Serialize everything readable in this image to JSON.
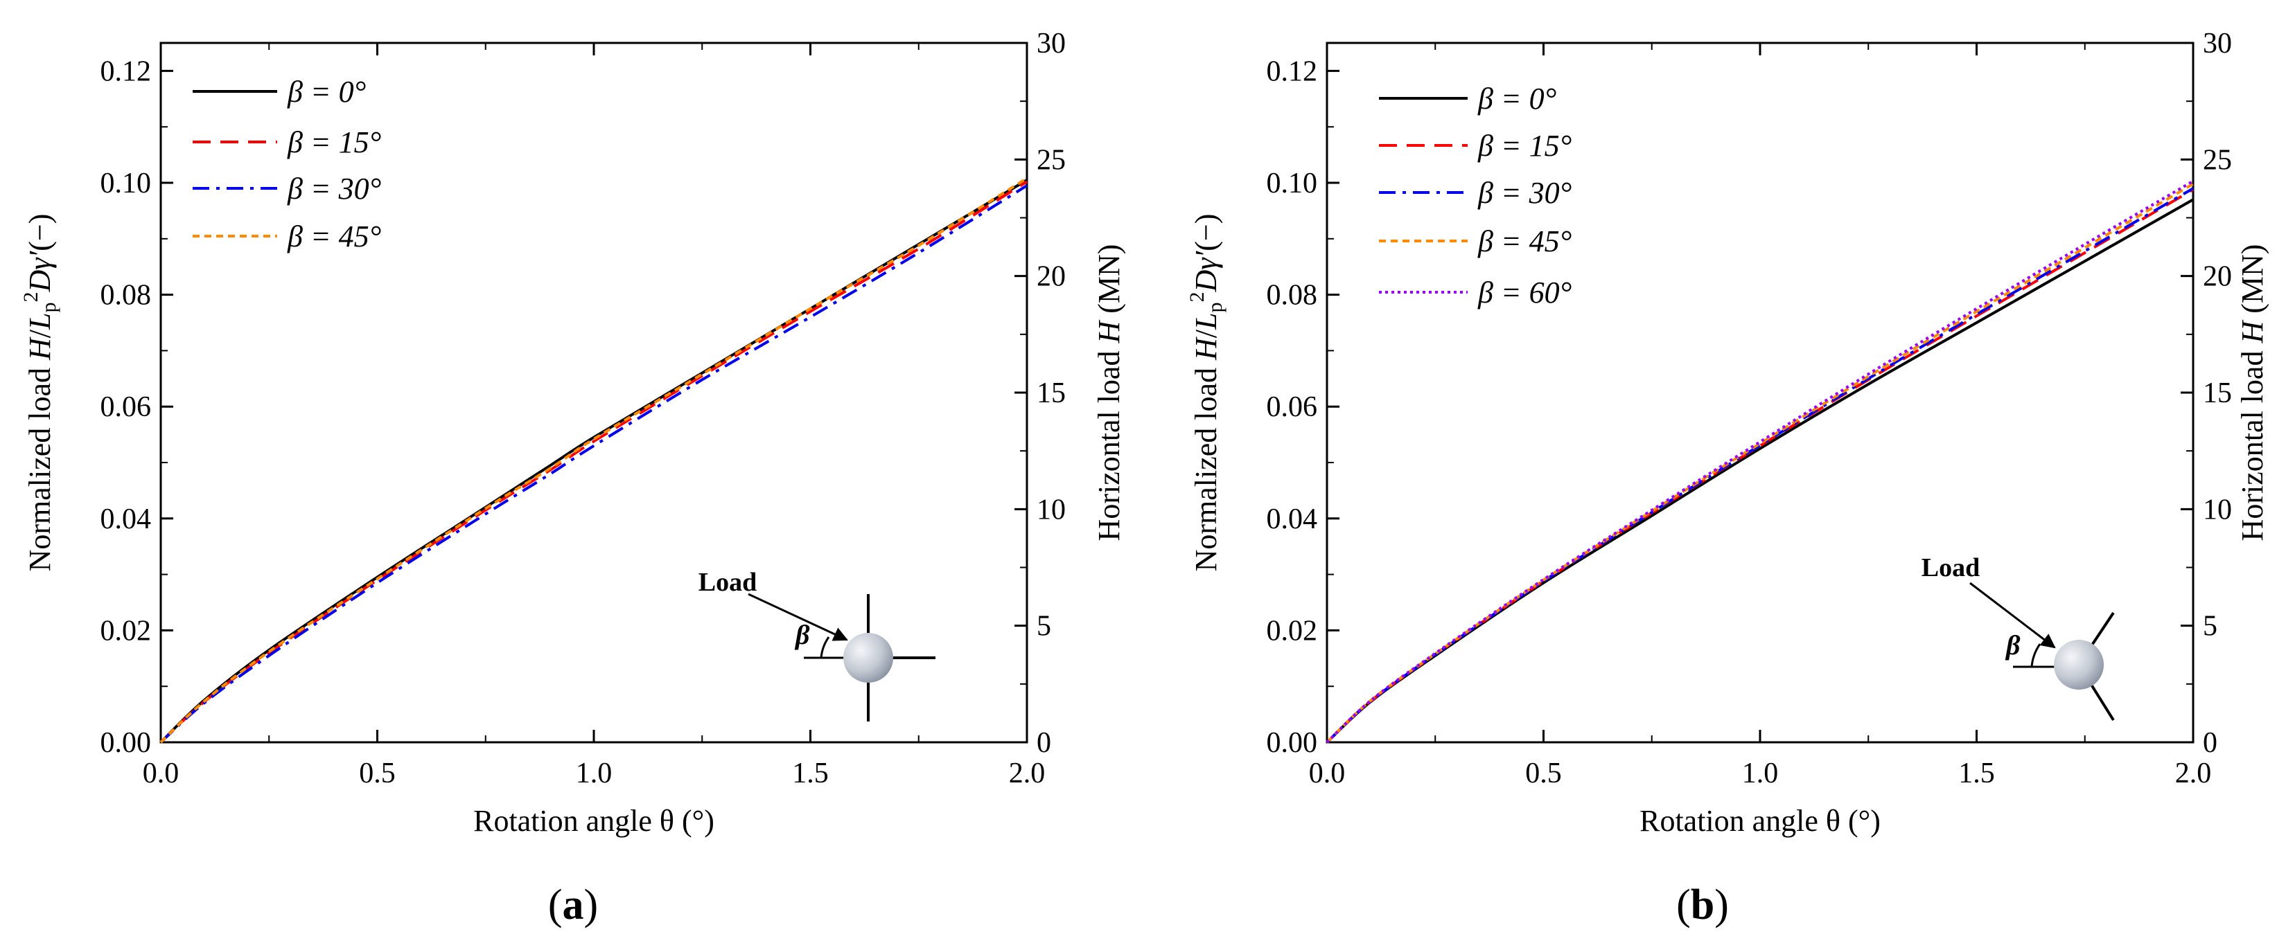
{
  "chart_data": [
    {
      "type": "line",
      "panel_label": "(a)",
      "xlabel": "Rotation angle θ (°)",
      "ylabel": "Normalized load H/Lp²Dγ′(−)",
      "ylabel_parts": {
        "a": "Normalized load ",
        "H": "H",
        "slash": "/",
        "L": "L",
        "p": "p",
        "sq": "2",
        "D": "D",
        "gamma": "γ′",
        "unit": "(−)"
      },
      "y2label": "Horizontal load H (MN)",
      "y2label_parts": {
        "a": "Horizontal load ",
        "H": "H",
        "unit": " (MN)"
      },
      "xlim": [
        0,
        2.0
      ],
      "ylim": [
        0,
        0.125
      ],
      "y2lim": [
        0,
        30
      ],
      "xticks": [
        "0.0",
        "0.5",
        "1.0",
        "1.5",
        "2.0"
      ],
      "yticks": [
        "0.00",
        "0.02",
        "0.04",
        "0.06",
        "0.08",
        "0.10",
        "0.12"
      ],
      "y2ticks": [
        "0",
        "5",
        "10",
        "15",
        "20",
        "25",
        "30"
      ],
      "legend_position": "top-left",
      "x": [
        0,
        0.1,
        0.25,
        0.5,
        0.75,
        0.9,
        1.0,
        1.25,
        1.5,
        1.75,
        2.0
      ],
      "series": [
        {
          "name": "β = 0°",
          "color": "#000000",
          "style": "solid",
          "values": [
            0,
            0.0075,
            0.0165,
            0.0295,
            0.042,
            0.0495,
            0.0545,
            0.066,
            0.0775,
            0.089,
            0.1005
          ]
        },
        {
          "name": "β = 15°",
          "color": "#ff0000",
          "style": "dash",
          "values": [
            0,
            0.0072,
            0.016,
            0.029,
            0.0415,
            0.0487,
            0.0538,
            0.0655,
            0.077,
            0.0882,
            0.1002
          ]
        },
        {
          "name": "β = 30°",
          "color": "#0000ee",
          "style": "dashdot",
          "values": [
            0,
            0.007,
            0.0155,
            0.0285,
            0.0408,
            0.048,
            0.053,
            0.0648,
            0.076,
            0.0875,
            0.0995
          ]
        },
        {
          "name": "β = 45°",
          "color": "#ff8c00",
          "style": "dot",
          "values": [
            0,
            0.0073,
            0.0162,
            0.0292,
            0.0418,
            0.049,
            0.0542,
            0.0658,
            0.0775,
            0.0888,
            0.1008
          ]
        }
      ],
      "inset": {
        "load_label": "Load",
        "beta_label": "β",
        "variant": "cross"
      }
    },
    {
      "type": "line",
      "panel_label": "(b)",
      "xlabel": "Rotation angle θ (°)",
      "ylabel": "Normalized load H/Lp²Dγ′(−)",
      "ylabel_parts": {
        "a": "Normalized load ",
        "H": "H",
        "slash": "/",
        "L": "L",
        "p": "p",
        "sq": "2",
        "D": "D",
        "gamma": "γ′",
        "unit": "(−)"
      },
      "y2label": "Horizontal load H (MN)",
      "y2label_parts": {
        "a": "Horizontal load ",
        "H": "H",
        "unit": " (MN)"
      },
      "xlim": [
        0,
        2.0
      ],
      "ylim": [
        0,
        0.125
      ],
      "y2lim": [
        0,
        30
      ],
      "xticks": [
        "0.0",
        "0.5",
        "1.0",
        "1.5",
        "2.0"
      ],
      "yticks": [
        "0.00",
        "0.02",
        "0.04",
        "0.06",
        "0.08",
        "0.10",
        "0.12"
      ],
      "y2ticks": [
        "0",
        "5",
        "10",
        "15",
        "20",
        "25",
        "30"
      ],
      "legend_position": "top-left",
      "x": [
        0,
        0.1,
        0.25,
        0.5,
        0.75,
        1.0,
        1.25,
        1.5,
        1.75,
        2.0
      ],
      "series": [
        {
          "name": "β = 0°",
          "color": "#000000",
          "style": "solid",
          "values": [
            0,
            0.0072,
            0.0155,
            0.0285,
            0.0405,
            0.0525,
            0.064,
            0.075,
            0.086,
            0.097
          ]
        },
        {
          "name": "β = 15°",
          "color": "#ff0000",
          "style": "dash",
          "values": [
            0,
            0.0073,
            0.0157,
            0.0288,
            0.041,
            0.053,
            0.0648,
            0.0762,
            0.0875,
            0.0988
          ]
        },
        {
          "name": "β = 30°",
          "color": "#0000ee",
          "style": "dashdot",
          "values": [
            0,
            0.0073,
            0.0157,
            0.0288,
            0.0411,
            0.0531,
            0.065,
            0.0765,
            0.0878,
            0.099
          ]
        },
        {
          "name": "β = 45°",
          "color": "#ff8c00",
          "style": "dot",
          "values": [
            0,
            0.0074,
            0.0158,
            0.029,
            0.0413,
            0.0534,
            0.0654,
            0.077,
            0.0884,
            0.0998
          ]
        },
        {
          "name": "β = 60°",
          "color": "#9900ff",
          "style": "fine-dot",
          "values": [
            0,
            0.0074,
            0.0159,
            0.0291,
            0.0415,
            0.0537,
            0.0658,
            0.0775,
            0.089,
            0.1003
          ]
        }
      ],
      "inset": {
        "load_label": "Load",
        "beta_label": "β",
        "variant": "diagonal"
      }
    }
  ]
}
